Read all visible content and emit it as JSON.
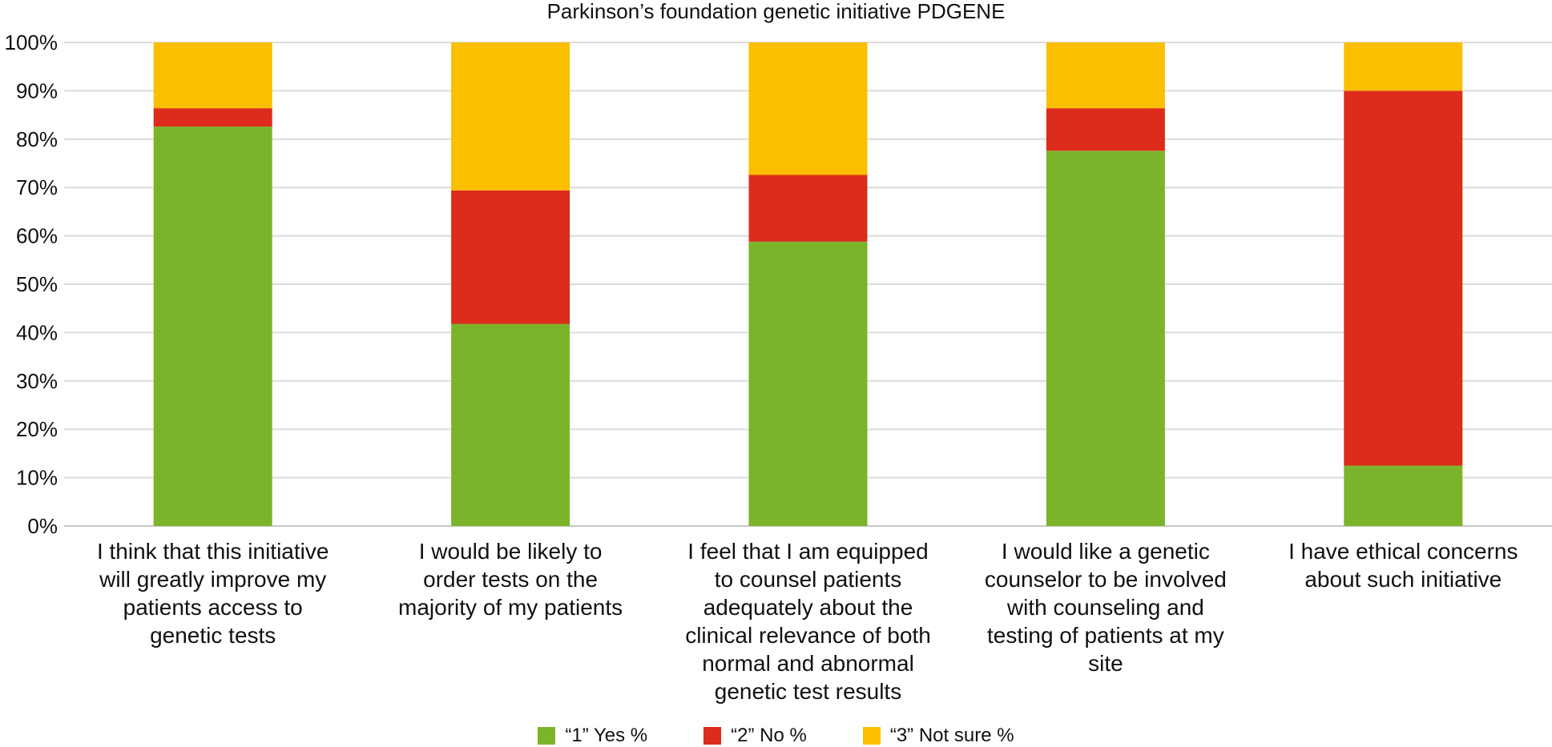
{
  "chart_data": {
    "type": "bar",
    "stacked": true,
    "title": "Parkinson’s foundation genetic initiative PDGENE",
    "xlabel": "",
    "ylabel": "",
    "ylim": [
      0,
      100
    ],
    "y_ticks": [
      "0%",
      "10%",
      "20%",
      "30%",
      "40%",
      "50%",
      "60%",
      "70%",
      "80%",
      "90%",
      "100%"
    ],
    "grid": true,
    "legend_position": "bottom",
    "categories": [
      [
        "I think that this initiative",
        "will greatly improve my",
        "patients access to",
        "genetic tests"
      ],
      [
        "I would be likely to",
        "order tests on the",
        "majority of my patients"
      ],
      [
        "I feel that I am equipped",
        "to counsel patients",
        "adequately about the",
        "clinical relevance of both",
        "normal and abnormal",
        "genetic test results"
      ],
      [
        "I would like a genetic",
        "counselor to be involved",
        "with counseling and",
        "testing of patients at my",
        "site"
      ],
      [
        "I have ethical concerns",
        "about such initiative"
      ]
    ],
    "series": [
      {
        "name": "“1” Yes %",
        "color": "#7bb42a",
        "values": [
          82.6,
          41.8,
          58.8,
          77.6,
          12.5
        ]
      },
      {
        "name": "“2” No %",
        "color": "#dd2b1c",
        "values": [
          3.8,
          27.6,
          13.8,
          8.8,
          77.5
        ]
      },
      {
        "name": "“3” Not sure %",
        "color": "#fbbf00",
        "values": [
          13.6,
          30.6,
          27.4,
          13.6,
          10.0
        ]
      }
    ]
  }
}
